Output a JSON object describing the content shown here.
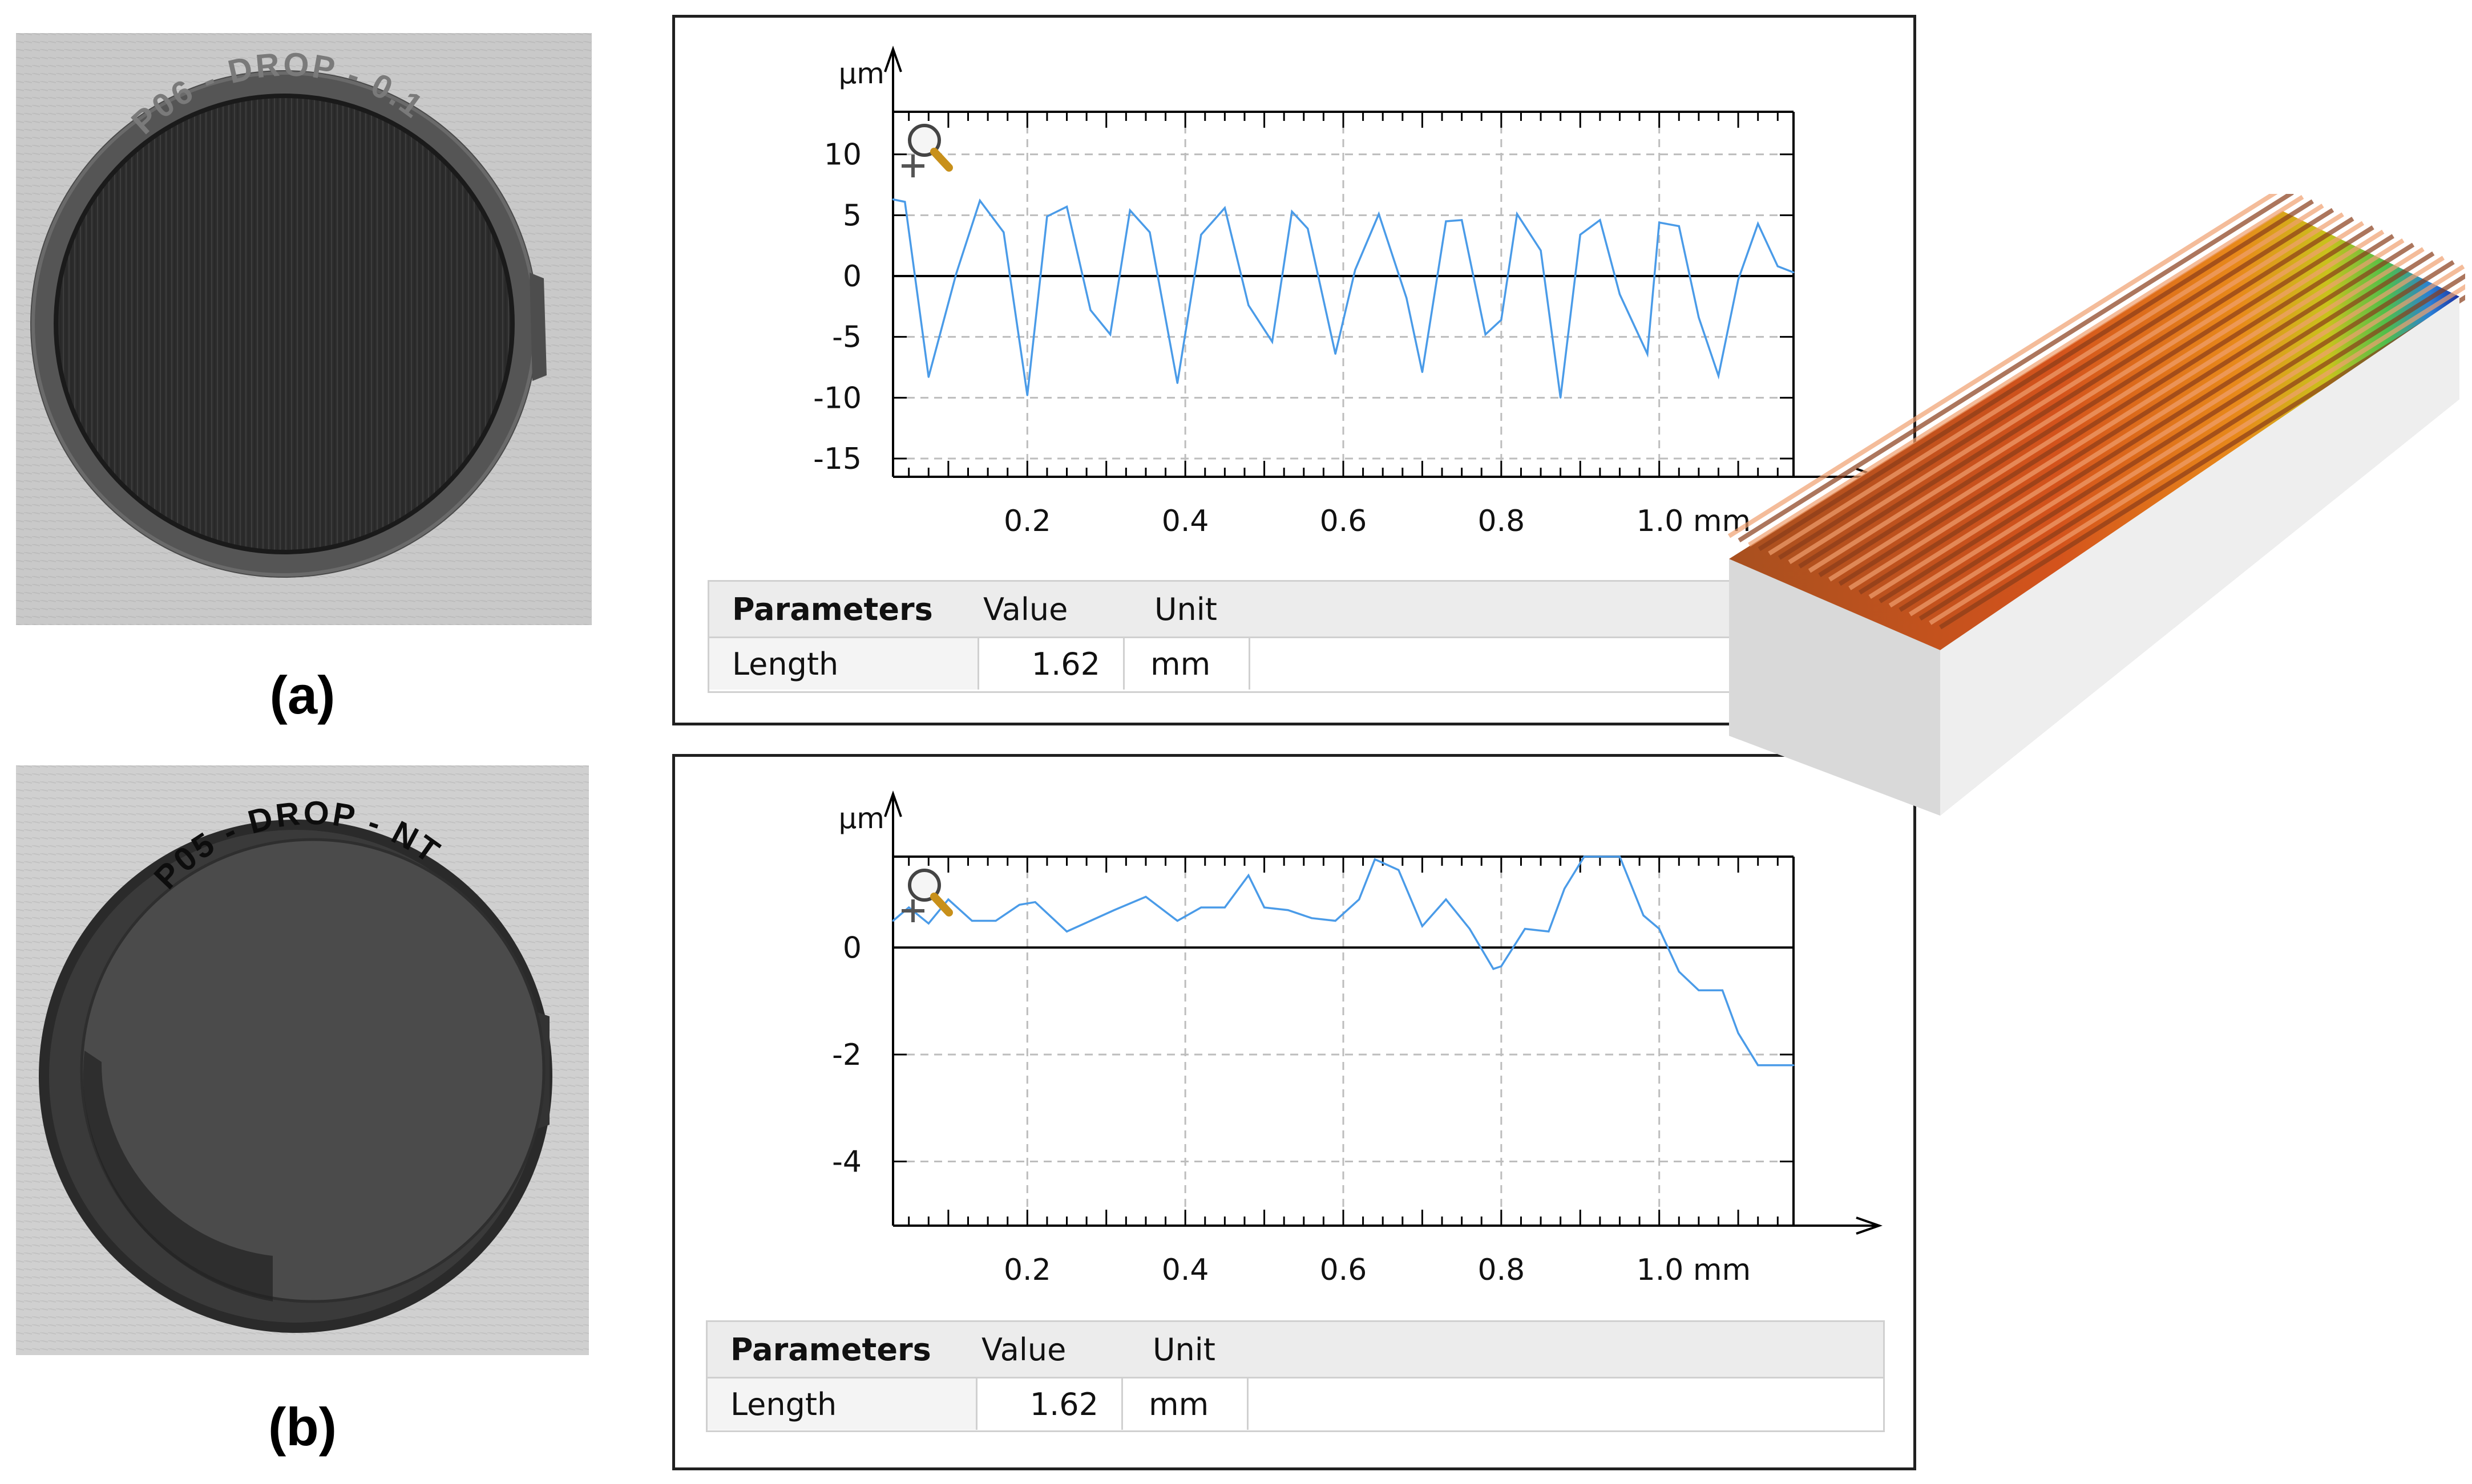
{
  "figure": {
    "caption_a": "(a)",
    "caption_b": "(b)",
    "sample_a_engraving": "P06 - DROP - 0.1",
    "sample_b_engraving": "P05 - DROP - NT"
  },
  "chart_data": [
    {
      "type": "line",
      "panel": "a",
      "yunit": "µm",
      "xunit": "mm",
      "xlim": [
        0.03,
        1.17
      ],
      "ylim": [
        -16.5,
        13.5
      ],
      "xticks": [
        "0.2",
        "0.4",
        "0.6",
        "0.8",
        "1.0 mm"
      ],
      "xtick_values": [
        0.2,
        0.4,
        0.6,
        0.8,
        1.0
      ],
      "yticks": [
        "10",
        "5",
        "0",
        "-5",
        "-10",
        "-15"
      ],
      "ytick_values": [
        10,
        5,
        0,
        -5,
        -10,
        -15
      ],
      "grid": true,
      "line_color": "#4a9be8",
      "x": [
        0.03,
        0.045,
        0.075,
        0.11,
        0.14,
        0.17,
        0.2,
        0.225,
        0.25,
        0.28,
        0.305,
        0.33,
        0.355,
        0.39,
        0.42,
        0.45,
        0.48,
        0.51,
        0.535,
        0.555,
        0.59,
        0.615,
        0.645,
        0.68,
        0.7,
        0.73,
        0.75,
        0.78,
        0.8,
        0.82,
        0.85,
        0.875,
        0.9,
        0.925,
        0.95,
        0.985,
        1.0,
        1.025,
        1.05,
        1.075,
        1.1,
        1.125,
        1.15,
        1.17
      ],
      "values": [
        6.3,
        6.1,
        -8.3,
        0.2,
        6.2,
        3.6,
        -9.8,
        4.9,
        5.7,
        -2.8,
        -4.8,
        5.4,
        3.6,
        -8.8,
        3.4,
        5.6,
        -2.4,
        -5.4,
        5.3,
        3.9,
        -6.4,
        0.5,
        5.1,
        -1.8,
        -7.9,
        4.5,
        4.6,
        -4.8,
        -3.6,
        5.1,
        2.1,
        -10.0,
        3.4,
        4.6,
        -1.5,
        -6.4,
        4.4,
        4.1,
        -3.4,
        -8.2,
        -0.3,
        4.3,
        0.8,
        0.3
      ]
    },
    {
      "type": "line",
      "panel": "b",
      "yunit": "µm",
      "xunit": "mm",
      "xlim": [
        0.03,
        1.17
      ],
      "ylim": [
        -5.2,
        1.7
      ],
      "xticks": [
        "0.2",
        "0.4",
        "0.6",
        "0.8",
        "1.0 mm"
      ],
      "xtick_values": [
        0.2,
        0.4,
        0.6,
        0.8,
        1.0
      ],
      "yticks": [
        "0",
        "-2",
        "-4"
      ],
      "ytick_values": [
        0,
        -2,
        -4
      ],
      "grid": true,
      "line_color": "#4a9be8",
      "x": [
        0.03,
        0.05,
        0.075,
        0.1,
        0.13,
        0.16,
        0.19,
        0.21,
        0.25,
        0.28,
        0.31,
        0.35,
        0.39,
        0.42,
        0.45,
        0.48,
        0.5,
        0.53,
        0.56,
        0.59,
        0.62,
        0.64,
        0.67,
        0.7,
        0.73,
        0.76,
        0.79,
        0.8,
        0.83,
        0.86,
        0.88,
        0.905,
        0.92,
        0.935,
        0.95,
        0.98,
        1.0,
        1.025,
        1.05,
        1.08,
        1.1,
        1.125,
        1.15,
        1.17
      ],
      "values": [
        0.5,
        0.75,
        0.45,
        0.9,
        0.5,
        0.5,
        0.8,
        0.85,
        0.3,
        0.5,
        0.7,
        0.95,
        0.5,
        0.75,
        0.75,
        1.35,
        0.75,
        0.7,
        0.55,
        0.5,
        0.9,
        1.65,
        1.45,
        0.4,
        0.9,
        0.35,
        -0.4,
        -0.35,
        0.35,
        0.3,
        1.1,
        1.7,
        1.7,
        1.7,
        1.7,
        0.6,
        0.35,
        -0.45,
        -0.8,
        -0.8,
        -1.6,
        -2.2,
        -2.2,
        -2.2
      ]
    }
  ],
  "tables": {
    "top": {
      "headers": {
        "name": "Parameters",
        "value": "Value",
        "unit": "Unit"
      },
      "row": {
        "name": "Length",
        "value": "1.62",
        "unit": "mm"
      }
    },
    "bottom": {
      "headers": {
        "name": "Parameters",
        "value": "Value",
        "unit": "Unit"
      },
      "row": {
        "name": "Length",
        "value": "1.62",
        "unit": "mm"
      }
    }
  }
}
